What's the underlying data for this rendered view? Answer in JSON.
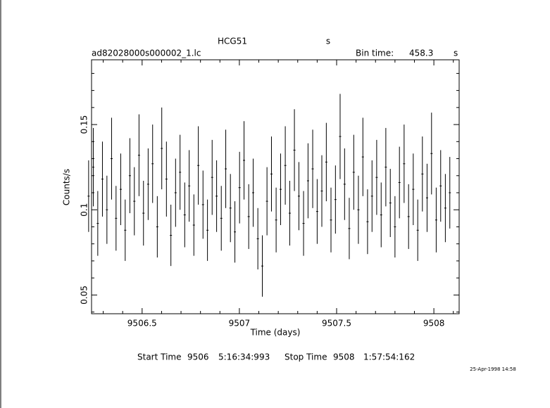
{
  "chart_data": {
    "type": "errorbar",
    "title": "HCG51",
    "title_units": "s",
    "filename": "ad82028000s000002_1.lc",
    "bin_time_label": "Bin time:",
    "bin_time": 458.3,
    "bin_time_units": "s",
    "xlabel": "Time (days)",
    "ylabel": "Counts/s",
    "start_time_label": "Start Time",
    "start_day": 9506,
    "start_clock": "5:16:34:993",
    "stop_time_label": "Stop Time",
    "stop_day": 9508,
    "stop_clock": "1:57:54:162",
    "date_stamp": "25-Apr-1998 14:58",
    "xlim": [
      9506.24,
      9508.13
    ],
    "ylim": [
      0.039,
      0.188
    ],
    "xticks": [
      9506.5,
      9507,
      9507.5,
      9508
    ],
    "yticks": [
      0.05,
      0.1,
      0.15
    ],
    "xminorticks": [
      9506.3,
      9506.4,
      9506.6,
      9506.7,
      9506.8,
      9506.9,
      9507.1,
      9507.2,
      9507.3,
      9507.4,
      9507.6,
      9507.7,
      9507.8,
      9507.9,
      9508.1
    ],
    "yminorticks": [
      0.04,
      0.06,
      0.07,
      0.08,
      0.09,
      0.11,
      0.12,
      0.13,
      0.14,
      0.16,
      0.17,
      0.18
    ],
    "color": "#000000",
    "x": [
      9506.225,
      9506.249,
      9506.272,
      9506.296,
      9506.319,
      9506.343,
      9506.366,
      9506.39,
      9506.413,
      9506.437,
      9506.46,
      9506.484,
      9506.507,
      9506.531,
      9506.554,
      9506.578,
      9506.601,
      9506.625,
      9506.648,
      9506.672,
      9506.695,
      9506.719,
      9506.742,
      9506.766,
      9506.789,
      9506.813,
      9506.836,
      9506.86,
      9506.883,
      9506.907,
      9506.93,
      9506.954,
      9506.977,
      9507.001,
      9507.024,
      9507.048,
      9507.071,
      9507.095,
      9507.118,
      9507.142,
      9507.165,
      9507.189,
      9507.212,
      9507.236,
      9507.259,
      9507.283,
      9507.306,
      9507.33,
      9507.353,
      9507.377,
      9507.4,
      9507.424,
      9507.447,
      9507.471,
      9507.494,
      9507.518,
      9507.541,
      9507.565,
      9507.588,
      9507.612,
      9507.635,
      9507.659,
      9507.682,
      9507.706,
      9507.729,
      9507.753,
      9507.776,
      9507.8,
      9507.823,
      9507.847,
      9507.87,
      9507.894,
      9507.917,
      9507.941,
      9507.965,
      9507.988,
      9508.012,
      9508.035,
      9508.059,
      9508.082
    ],
    "values": [
      0.108,
      0.125,
      0.092,
      0.118,
      0.1,
      0.13,
      0.095,
      0.112,
      0.088,
      0.12,
      0.105,
      0.132,
      0.098,
      0.115,
      0.127,
      0.09,
      0.136,
      0.118,
      0.085,
      0.11,
      0.122,
      0.097,
      0.114,
      0.091,
      0.126,
      0.103,
      0.088,
      0.119,
      0.108,
      0.095,
      0.124,
      0.101,
      0.087,
      0.113,
      0.129,
      0.096,
      0.11,
      0.083,
      0.067,
      0.105,
      0.121,
      0.094,
      0.112,
      0.126,
      0.098,
      0.135,
      0.108,
      0.092,
      0.117,
      0.124,
      0.099,
      0.111,
      0.128,
      0.094,
      0.106,
      0.143,
      0.115,
      0.089,
      0.122,
      0.1,
      0.131,
      0.093,
      0.108,
      0.119,
      0.097,
      0.125,
      0.104,
      0.09,
      0.116,
      0.127,
      0.096,
      0.112,
      0.088,
      0.121,
      0.107,
      0.133,
      0.094,
      0.114,
      0.101,
      0.11
    ],
    "errors": [
      0.021,
      0.023,
      0.019,
      0.022,
      0.02,
      0.024,
      0.019,
      0.021,
      0.018,
      0.022,
      0.02,
      0.024,
      0.019,
      0.021,
      0.023,
      0.018,
      0.024,
      0.022,
      0.018,
      0.02,
      0.022,
      0.019,
      0.021,
      0.018,
      0.023,
      0.02,
      0.018,
      0.022,
      0.021,
      0.019,
      0.023,
      0.02,
      0.018,
      0.021,
      0.023,
      0.019,
      0.02,
      0.018,
      0.018,
      0.02,
      0.022,
      0.019,
      0.021,
      0.023,
      0.019,
      0.024,
      0.02,
      0.019,
      0.022,
      0.023,
      0.019,
      0.021,
      0.023,
      0.019,
      0.02,
      0.025,
      0.021,
      0.018,
      0.022,
      0.02,
      0.023,
      0.019,
      0.021,
      0.022,
      0.019,
      0.023,
      0.02,
      0.018,
      0.021,
      0.023,
      0.019,
      0.021,
      0.018,
      0.022,
      0.02,
      0.024,
      0.019,
      0.021,
      0.02,
      0.021
    ]
  }
}
